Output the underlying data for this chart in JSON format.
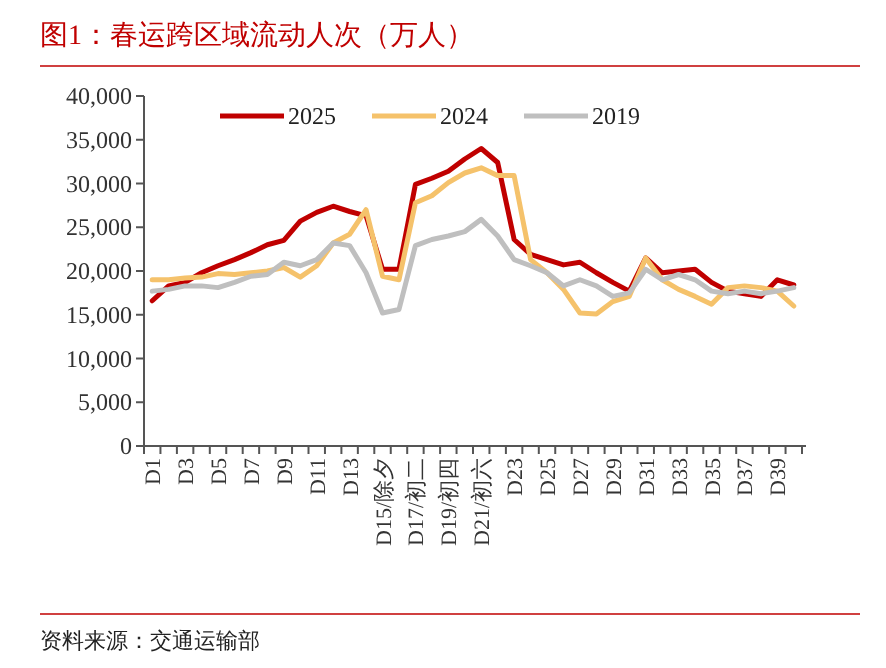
{
  "chart_data": {
    "type": "line",
    "title": "图1：春运跨区域流动人次（万人）",
    "annotations": [
      "资料来源：交通运输部"
    ],
    "categories": [
      "D1",
      null,
      "D3",
      null,
      "D5",
      null,
      "D7",
      null,
      "D9",
      null,
      "D11",
      null,
      "D13",
      null,
      "D15/除夕",
      null,
      "D17/初二",
      null,
      "D19/初四",
      null,
      "D21/初六",
      null,
      "D23",
      null,
      "D25",
      null,
      "D27",
      null,
      "D29",
      null,
      "D31",
      null,
      "D33",
      null,
      "D35",
      null,
      "D37",
      null,
      "D39",
      null
    ],
    "series": [
      {
        "name": "2025",
        "color": "#c00000",
        "values": [
          16600,
          18300,
          18700,
          19800,
          20600,
          21300,
          22100,
          23000,
          23500,
          25700,
          26700,
          27400,
          26800,
          26300,
          20200,
          20200,
          29900,
          30600,
          31400,
          32800,
          34000,
          32400,
          23600,
          21900,
          21300,
          20700,
          21000,
          19800,
          18700,
          17700,
          21500,
          19800,
          20000,
          20200,
          18700,
          17700,
          17400,
          17100,
          19000,
          18400
        ]
      },
      {
        "name": "2024",
        "color": "#f5c26b",
        "values": [
          19000,
          19000,
          19200,
          19300,
          19700,
          19600,
          19800,
          20000,
          20400,
          19300,
          20600,
          23200,
          24200,
          27000,
          19400,
          19000,
          27800,
          28600,
          30100,
          31200,
          31800,
          30900,
          30900,
          21300,
          19800,
          17900,
          15200,
          15100,
          16500,
          17100,
          21500,
          19000,
          17900,
          17100,
          16200,
          18100,
          18300,
          18100,
          17700,
          16000
        ]
      },
      {
        "name": "2019",
        "color": "#bfbfbf",
        "values": [
          17700,
          17900,
          18300,
          18300,
          18100,
          18700,
          19400,
          19600,
          21000,
          20600,
          21300,
          23200,
          22900,
          19800,
          15200,
          15600,
          22900,
          23600,
          24000,
          24500,
          25900,
          24000,
          21300,
          20600,
          19800,
          18300,
          19000,
          18300,
          17100,
          17500,
          20200,
          19000,
          19600,
          19000,
          17700,
          17400,
          17700,
          17400,
          17700,
          18100
        ]
      }
    ],
    "ylim": [
      0,
      40000
    ],
    "yticks": [
      {
        "value": 0,
        "label": "0"
      },
      {
        "value": 5000,
        "label": "5,000"
      },
      {
        "value": 10000,
        "label": "10,000"
      },
      {
        "value": 15000,
        "label": "15,000"
      },
      {
        "value": 20000,
        "label": "20,000"
      },
      {
        "value": 25000,
        "label": "25,000"
      },
      {
        "value": 30000,
        "label": "30,000"
      },
      {
        "value": 35000,
        "label": "35,000"
      },
      {
        "value": 40000,
        "label": "40,000"
      }
    ],
    "legend": "top"
  }
}
